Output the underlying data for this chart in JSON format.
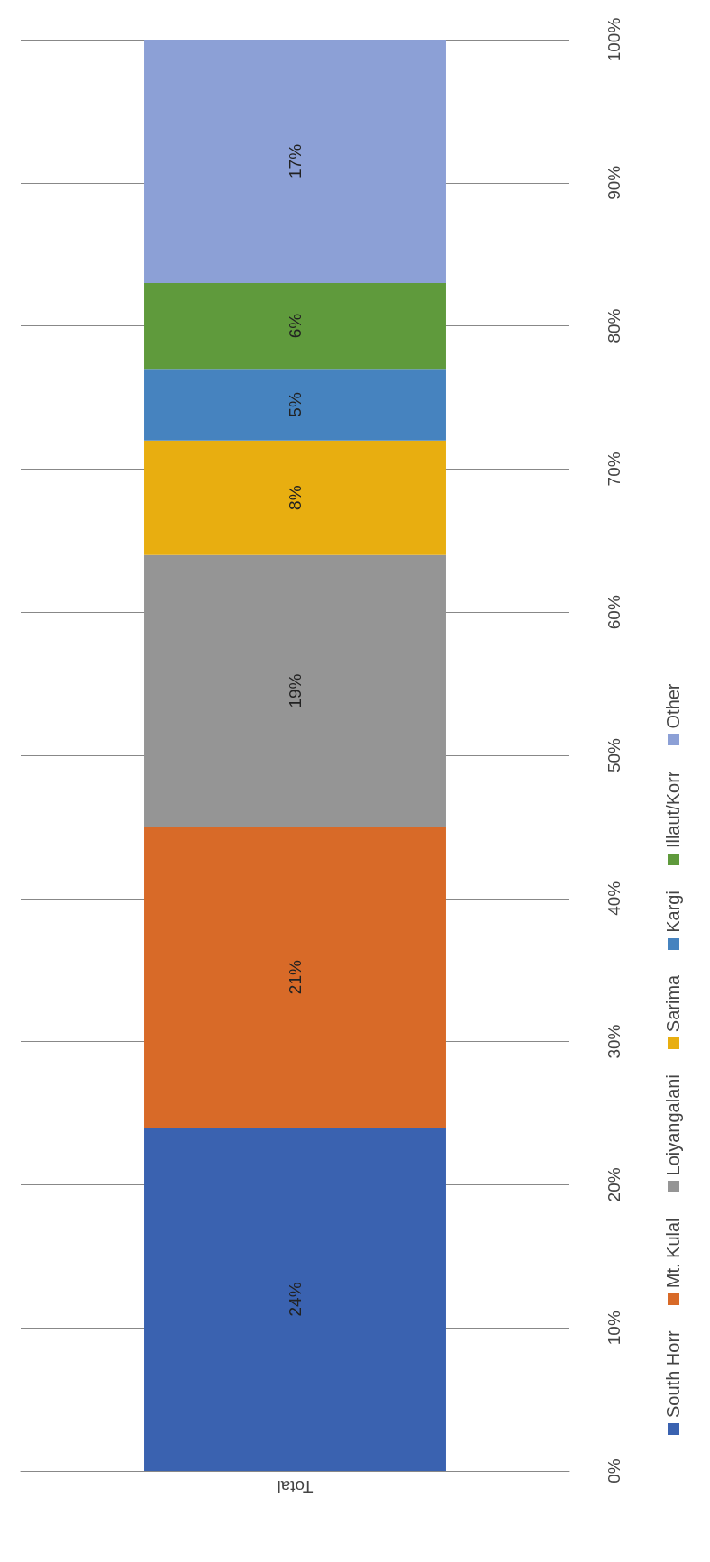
{
  "chart_data": {
    "type": "bar",
    "stacked": true,
    "categories": [
      "Total"
    ],
    "series": [
      {
        "name": "South Horr",
        "color": "#3a62b0",
        "values": [
          24
        ],
        "value_labels": [
          "24%"
        ]
      },
      {
        "name": "Mt. Kulal",
        "color": "#d86a28",
        "values": [
          21
        ],
        "value_labels": [
          "21%"
        ]
      },
      {
        "name": "Loiyangalani",
        "color": "#959595",
        "values": [
          19
        ],
        "value_labels": [
          "19%"
        ]
      },
      {
        "name": "Sarima",
        "color": "#e8ae10",
        "values": [
          8
        ],
        "value_labels": [
          "8%"
        ]
      },
      {
        "name": "Kargi",
        "color": "#4683bf",
        "values": [
          5
        ],
        "value_labels": [
          "5%"
        ]
      },
      {
        "name": "Illaut/Korr",
        "color": "#5f9a3c",
        "values": [
          6
        ],
        "value_labels": [
          "6%"
        ]
      },
      {
        "name": "Other",
        "color": "#8ca0d6",
        "values": [
          17
        ],
        "value_labels": [
          "17%"
        ]
      }
    ],
    "ylim": [
      0,
      100
    ],
    "yticks": [
      {
        "value": 0,
        "label": "0%"
      },
      {
        "value": 10,
        "label": "10%"
      },
      {
        "value": 20,
        "label": "20%"
      },
      {
        "value": 30,
        "label": "30%"
      },
      {
        "value": 40,
        "label": "40%"
      },
      {
        "value": 50,
        "label": "50%"
      },
      {
        "value": 60,
        "label": "60%"
      },
      {
        "value": 70,
        "label": "70%"
      },
      {
        "value": 80,
        "label": "80%"
      },
      {
        "value": 90,
        "label": "90%"
      },
      {
        "value": 100,
        "label": "100%"
      }
    ],
    "grid": "y",
    "legend": "right"
  }
}
